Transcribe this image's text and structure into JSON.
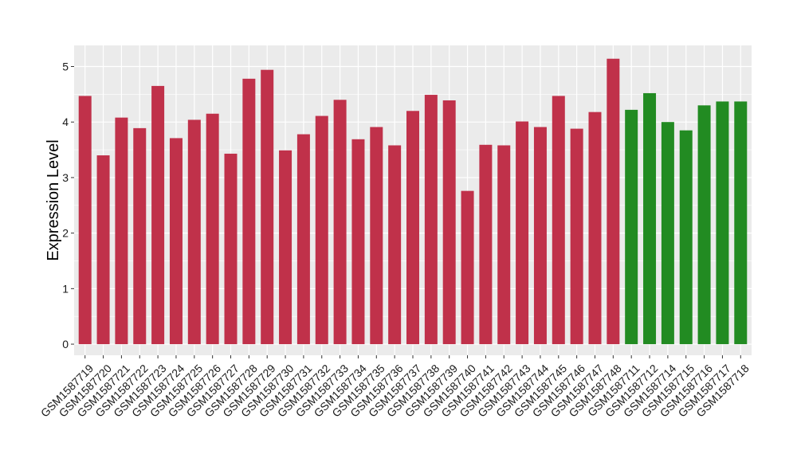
{
  "chart_data": {
    "type": "bar",
    "title": "",
    "xlabel": "",
    "ylabel": "Expression Level",
    "ylim": [
      -0.2,
      5.38
    ],
    "yticks": [
      0,
      1,
      2,
      3,
      4,
      5
    ],
    "grid": true,
    "legend": "none",
    "colors": {
      "group_a": "#c0314a",
      "group_b": "#228b22",
      "panel": "#ebebeb",
      "grid": "#ffffff"
    },
    "categories": [
      "GSM1587719",
      "GSM1587720",
      "GSM1587721",
      "GSM1587722",
      "GSM1587723",
      "GSM1587724",
      "GSM1587725",
      "GSM1587726",
      "GSM1587727",
      "GSM1587728",
      "GSM1587729",
      "GSM1587730",
      "GSM1587731",
      "GSM1587732",
      "GSM1587733",
      "GSM1587734",
      "GSM1587735",
      "GSM1587736",
      "GSM1587737",
      "GSM1587738",
      "GSM1587739",
      "GSM1587740",
      "GSM1587741",
      "GSM1587742",
      "GSM1587743",
      "GSM1587744",
      "GSM1587745",
      "GSM1587746",
      "GSM1587747",
      "GSM1587748",
      "GSM1587711",
      "GSM1587712",
      "GSM1587714",
      "GSM1587715",
      "GSM1587716",
      "GSM1587717",
      "GSM1587718"
    ],
    "values": [
      4.47,
      3.4,
      4.08,
      3.89,
      4.65,
      3.71,
      4.04,
      4.15,
      3.43,
      4.78,
      4.94,
      3.49,
      3.78,
      4.11,
      4.4,
      3.69,
      3.91,
      3.58,
      4.2,
      4.49,
      4.39,
      2.76,
      3.59,
      3.58,
      4.01,
      3.91,
      4.47,
      3.88,
      4.18,
      5.14,
      4.22,
      4.52,
      4.0,
      3.85,
      4.3,
      4.37,
      4.37
    ],
    "groups": [
      "a",
      "a",
      "a",
      "a",
      "a",
      "a",
      "a",
      "a",
      "a",
      "a",
      "a",
      "a",
      "a",
      "a",
      "a",
      "a",
      "a",
      "a",
      "a",
      "a",
      "a",
      "a",
      "a",
      "a",
      "a",
      "a",
      "a",
      "a",
      "a",
      "a",
      "b",
      "b",
      "b",
      "b",
      "b",
      "b",
      "b"
    ]
  }
}
